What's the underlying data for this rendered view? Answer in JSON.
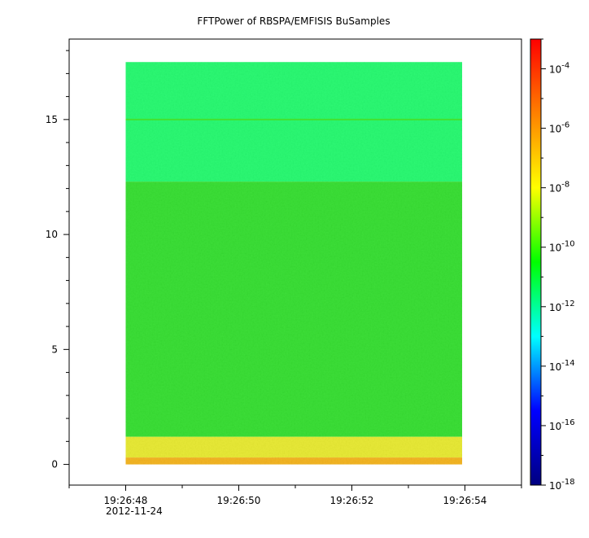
{
  "chart_data": {
    "type": "heatmap",
    "title": "FFTPower of RBSPA/EMFISIS  BuSamples",
    "xlabel": "",
    "ylabel": "",
    "x_ticks": [
      "19:26:48",
      "19:26:50",
      "19:26:52",
      "19:26:54"
    ],
    "x_tick_values": [
      0,
      2,
      4,
      6
    ],
    "x_date_label": "2012-11-24",
    "xlim": [
      -1,
      7
    ],
    "y_ticks": [
      "0",
      "5",
      "10",
      "15"
    ],
    "y_tick_values": [
      0,
      5,
      10,
      15
    ],
    "ylim": [
      -0.9,
      18.5
    ],
    "data_extent": {
      "x": [
        0,
        5.95
      ],
      "y": [
        0,
        17.5
      ]
    },
    "grid": false,
    "colorbar": {
      "scale": "log",
      "range": [
        1e-18,
        0.001
      ],
      "tick_exponents": [
        -4,
        -6,
        -8,
        -10,
        -12,
        -14,
        -16,
        -18
      ],
      "tick_base": "10",
      "colormap": [
        "#000080",
        "#0000ff",
        "#00ffff",
        "#00ff00",
        "#ffff00",
        "#ff8000",
        "#ff0000"
      ]
    },
    "bands": [
      {
        "y_range": [
          12.3,
          17.5
        ],
        "log_power": -12.5,
        "color": "#1ef86a",
        "label": ""
      },
      {
        "y_range": [
          1.2,
          12.3
        ],
        "log_power": -11.0,
        "color": "#2fdc2a",
        "label": ""
      },
      {
        "y_range": [
          0.3,
          1.2
        ],
        "log_power": -8.5,
        "color": "#e6e82a",
        "label": ""
      },
      {
        "y_range": [
          0,
          0.3
        ],
        "log_power": -7.0,
        "color": "#f2b016",
        "label": ""
      }
    ],
    "lines": [
      {
        "y": 15.0,
        "log_power": -11.0,
        "color": "#43e22f"
      }
    ]
  }
}
